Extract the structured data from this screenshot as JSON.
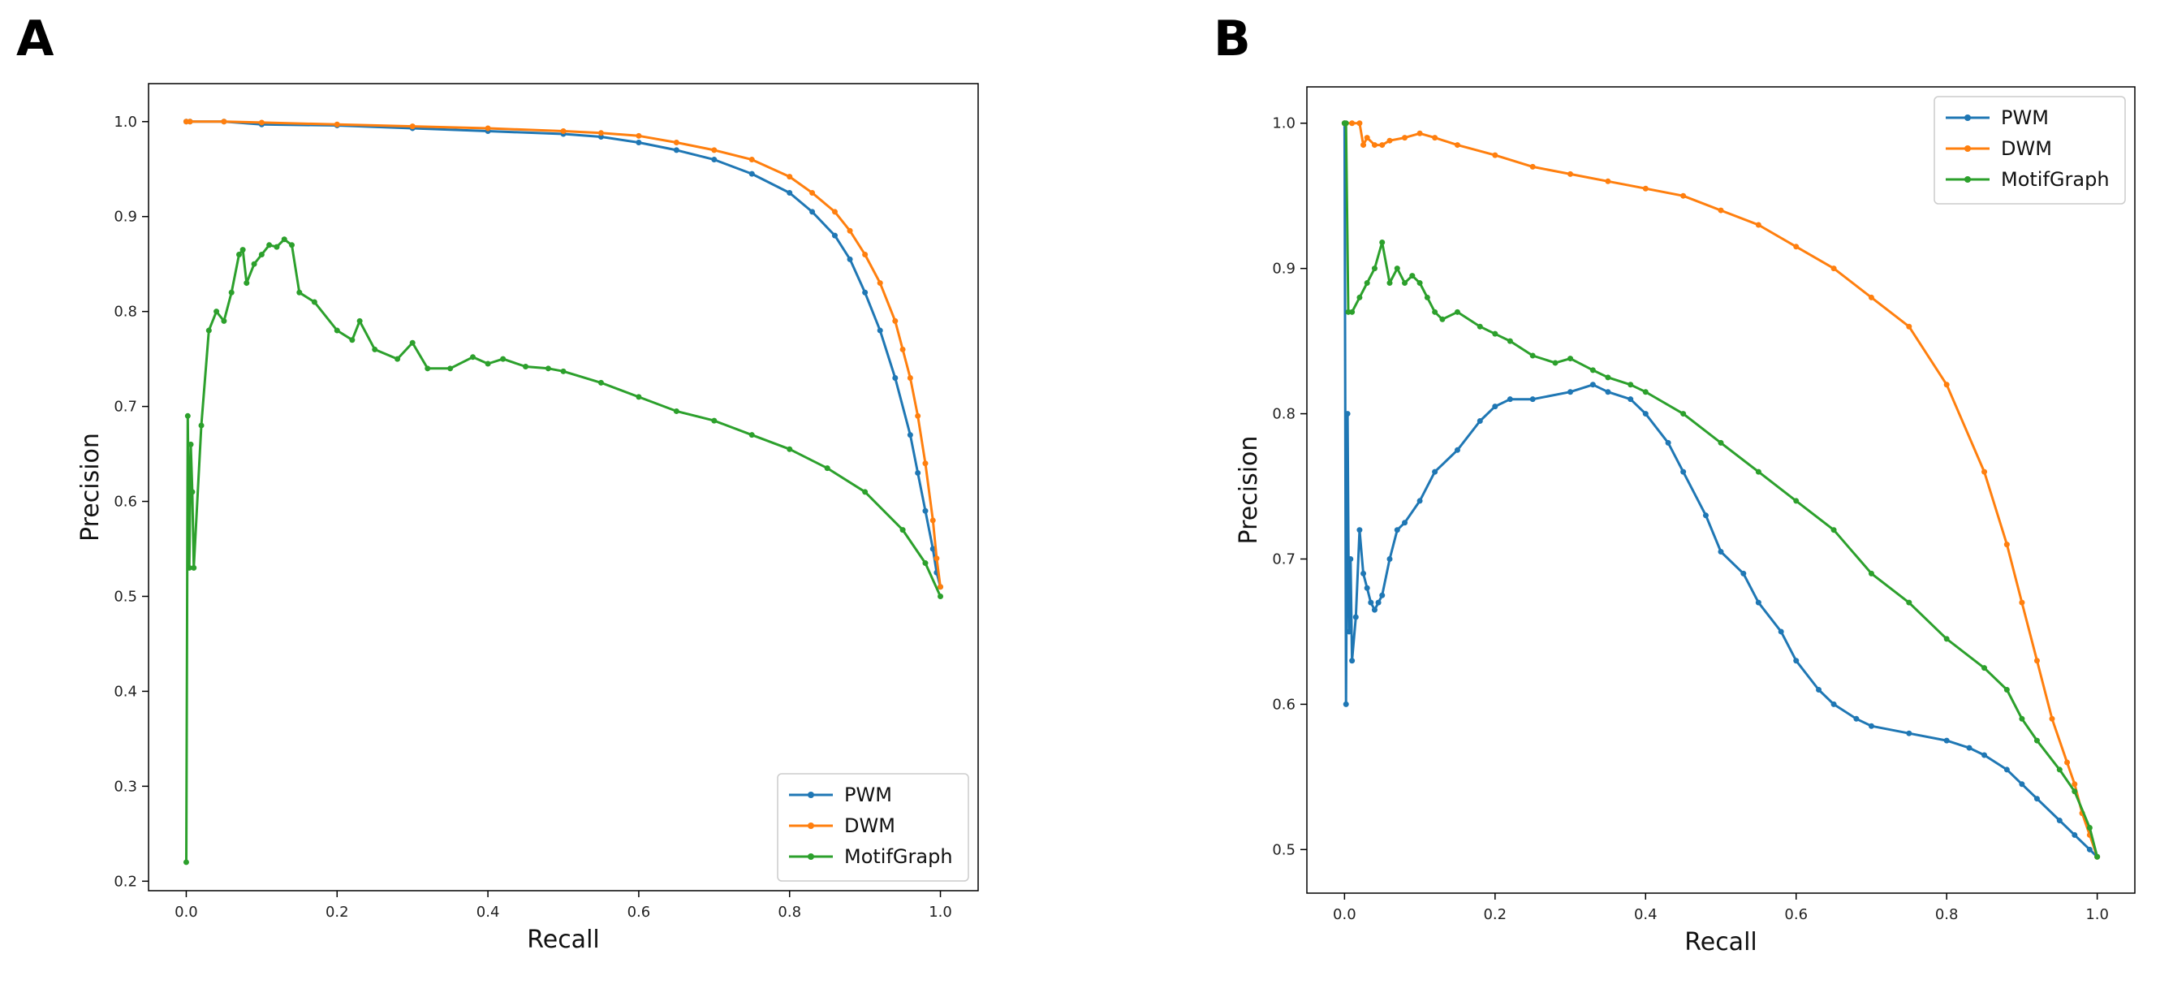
{
  "panels": [
    {
      "label": "A"
    },
    {
      "label": "B"
    }
  ],
  "chart_data": [
    {
      "type": "line",
      "xlabel": "Recall",
      "ylabel": "Precision",
      "xlim": [
        -0.05,
        1.05
      ],
      "ylim": [
        0.19,
        1.04
      ],
      "x_ticks": [
        0.0,
        0.2,
        0.4,
        0.6,
        0.8,
        1.0
      ],
      "x_tick_labels": [
        "0.0",
        "0.2",
        "0.4",
        "0.6",
        "0.8",
        "1.0"
      ],
      "y_ticks": [
        0.2,
        0.3,
        0.4,
        0.5,
        0.6,
        0.7,
        0.8,
        0.9,
        1.0
      ],
      "y_tick_labels": [
        "0.2",
        "0.3",
        "0.4",
        "0.5",
        "0.6",
        "0.7",
        "0.8",
        "0.9",
        "1.0"
      ],
      "grid": false,
      "legend_position": "bottom-right",
      "series": [
        {
          "name": "PWM",
          "color": "#1f77b4",
          "x": [
            0.0,
            0.005,
            0.05,
            0.1,
            0.2,
            0.3,
            0.4,
            0.5,
            0.55,
            0.6,
            0.65,
            0.7,
            0.75,
            0.8,
            0.83,
            0.86,
            0.88,
            0.9,
            0.92,
            0.94,
            0.96,
            0.97,
            0.98,
            0.99,
            0.995,
            1.0
          ],
          "y": [
            1.0,
            1.0,
            1.0,
            0.997,
            0.996,
            0.993,
            0.99,
            0.987,
            0.984,
            0.978,
            0.97,
            0.96,
            0.945,
            0.925,
            0.905,
            0.88,
            0.855,
            0.82,
            0.78,
            0.73,
            0.67,
            0.63,
            0.59,
            0.55,
            0.525,
            0.51
          ]
        },
        {
          "name": "DWM",
          "color": "#ff7f0e",
          "x": [
            0.0,
            0.005,
            0.05,
            0.1,
            0.2,
            0.3,
            0.4,
            0.5,
            0.55,
            0.6,
            0.65,
            0.7,
            0.75,
            0.8,
            0.83,
            0.86,
            0.88,
            0.9,
            0.92,
            0.94,
            0.95,
            0.96,
            0.97,
            0.98,
            0.99,
            0.995,
            1.0
          ],
          "y": [
            1.0,
            1.0,
            1.0,
            0.999,
            0.997,
            0.995,
            0.993,
            0.99,
            0.988,
            0.985,
            0.978,
            0.97,
            0.96,
            0.942,
            0.925,
            0.905,
            0.885,
            0.86,
            0.83,
            0.79,
            0.76,
            0.73,
            0.69,
            0.64,
            0.58,
            0.54,
            0.51
          ]
        },
        {
          "name": "MotifGraph",
          "color": "#2ca02c",
          "x": [
            0.0,
            0.002,
            0.004,
            0.006,
            0.008,
            0.01,
            0.02,
            0.03,
            0.04,
            0.05,
            0.06,
            0.07,
            0.075,
            0.08,
            0.09,
            0.1,
            0.11,
            0.12,
            0.13,
            0.14,
            0.15,
            0.17,
            0.2,
            0.22,
            0.23,
            0.25,
            0.28,
            0.3,
            0.32,
            0.35,
            0.38,
            0.4,
            0.42,
            0.45,
            0.48,
            0.5,
            0.55,
            0.6,
            0.65,
            0.7,
            0.75,
            0.8,
            0.85,
            0.9,
            0.95,
            0.98,
            1.0
          ],
          "y": [
            0.22,
            0.69,
            0.53,
            0.66,
            0.61,
            0.53,
            0.68,
            0.78,
            0.8,
            0.79,
            0.82,
            0.86,
            0.865,
            0.83,
            0.85,
            0.86,
            0.87,
            0.868,
            0.876,
            0.87,
            0.82,
            0.81,
            0.78,
            0.77,
            0.79,
            0.76,
            0.75,
            0.767,
            0.74,
            0.74,
            0.752,
            0.745,
            0.75,
            0.742,
            0.74,
            0.737,
            0.725,
            0.71,
            0.695,
            0.685,
            0.67,
            0.655,
            0.635,
            0.61,
            0.57,
            0.535,
            0.5
          ]
        }
      ]
    },
    {
      "type": "line",
      "xlabel": "Recall",
      "ylabel": "Precision",
      "xlim": [
        -0.05,
        1.05
      ],
      "ylim": [
        0.47,
        1.025
      ],
      "x_ticks": [
        0.0,
        0.2,
        0.4,
        0.6,
        0.8,
        1.0
      ],
      "x_tick_labels": [
        "0.0",
        "0.2",
        "0.4",
        "0.6",
        "0.8",
        "1.0"
      ],
      "y_ticks": [
        0.5,
        0.6,
        0.7,
        0.8,
        0.9,
        1.0
      ],
      "y_tick_labels": [
        "0.5",
        "0.6",
        "0.7",
        "0.8",
        "0.9",
        "1.0"
      ],
      "grid": false,
      "legend_position": "top-right",
      "series": [
        {
          "name": "PWM",
          "color": "#1f77b4",
          "x": [
            0.0,
            0.002,
            0.004,
            0.006,
            0.008,
            0.01,
            0.015,
            0.02,
            0.025,
            0.03,
            0.035,
            0.04,
            0.045,
            0.05,
            0.06,
            0.07,
            0.08,
            0.1,
            0.12,
            0.15,
            0.18,
            0.2,
            0.22,
            0.25,
            0.3,
            0.33,
            0.35,
            0.38,
            0.4,
            0.43,
            0.45,
            0.48,
            0.5,
            0.53,
            0.55,
            0.58,
            0.6,
            0.63,
            0.65,
            0.68,
            0.7,
            0.75,
            0.8,
            0.83,
            0.85,
            0.88,
            0.9,
            0.92,
            0.95,
            0.97,
            0.99,
            1.0
          ],
          "y": [
            1.0,
            0.6,
            0.8,
            0.65,
            0.7,
            0.63,
            0.66,
            0.72,
            0.69,
            0.68,
            0.67,
            0.665,
            0.67,
            0.675,
            0.7,
            0.72,
            0.725,
            0.74,
            0.76,
            0.775,
            0.795,
            0.805,
            0.81,
            0.81,
            0.815,
            0.82,
            0.815,
            0.81,
            0.8,
            0.78,
            0.76,
            0.73,
            0.705,
            0.69,
            0.67,
            0.65,
            0.63,
            0.61,
            0.6,
            0.59,
            0.585,
            0.58,
            0.575,
            0.57,
            0.565,
            0.555,
            0.545,
            0.535,
            0.52,
            0.51,
            0.5,
            0.495
          ]
        },
        {
          "name": "DWM",
          "color": "#ff7f0e",
          "x": [
            0.0,
            0.01,
            0.02,
            0.025,
            0.03,
            0.04,
            0.05,
            0.06,
            0.08,
            0.1,
            0.12,
            0.15,
            0.2,
            0.25,
            0.3,
            0.35,
            0.4,
            0.45,
            0.5,
            0.55,
            0.6,
            0.65,
            0.7,
            0.75,
            0.8,
            0.85,
            0.88,
            0.9,
            0.92,
            0.94,
            0.96,
            0.97,
            0.98,
            0.99,
            1.0
          ],
          "y": [
            1.0,
            1.0,
            1.0,
            0.985,
            0.99,
            0.985,
            0.985,
            0.988,
            0.99,
            0.993,
            0.99,
            0.985,
            0.978,
            0.97,
            0.965,
            0.96,
            0.955,
            0.95,
            0.94,
            0.93,
            0.915,
            0.9,
            0.88,
            0.86,
            0.82,
            0.76,
            0.71,
            0.67,
            0.63,
            0.59,
            0.56,
            0.545,
            0.525,
            0.51,
            0.495
          ]
        },
        {
          "name": "MotifGraph",
          "color": "#2ca02c",
          "x": [
            0.0,
            0.002,
            0.005,
            0.01,
            0.02,
            0.03,
            0.04,
            0.05,
            0.06,
            0.07,
            0.08,
            0.09,
            0.1,
            0.11,
            0.12,
            0.13,
            0.15,
            0.18,
            0.2,
            0.22,
            0.25,
            0.28,
            0.3,
            0.33,
            0.35,
            0.38,
            0.4,
            0.45,
            0.5,
            0.55,
            0.6,
            0.65,
            0.7,
            0.75,
            0.8,
            0.85,
            0.88,
            0.9,
            0.92,
            0.95,
            0.97,
            0.99,
            1.0
          ],
          "y": [
            1.0,
            1.0,
            0.87,
            0.87,
            0.88,
            0.89,
            0.9,
            0.918,
            0.89,
            0.9,
            0.89,
            0.895,
            0.89,
            0.88,
            0.87,
            0.865,
            0.87,
            0.86,
            0.855,
            0.85,
            0.84,
            0.835,
            0.838,
            0.83,
            0.825,
            0.82,
            0.815,
            0.8,
            0.78,
            0.76,
            0.74,
            0.72,
            0.69,
            0.67,
            0.645,
            0.625,
            0.61,
            0.59,
            0.575,
            0.555,
            0.54,
            0.515,
            0.495
          ]
        }
      ]
    }
  ]
}
